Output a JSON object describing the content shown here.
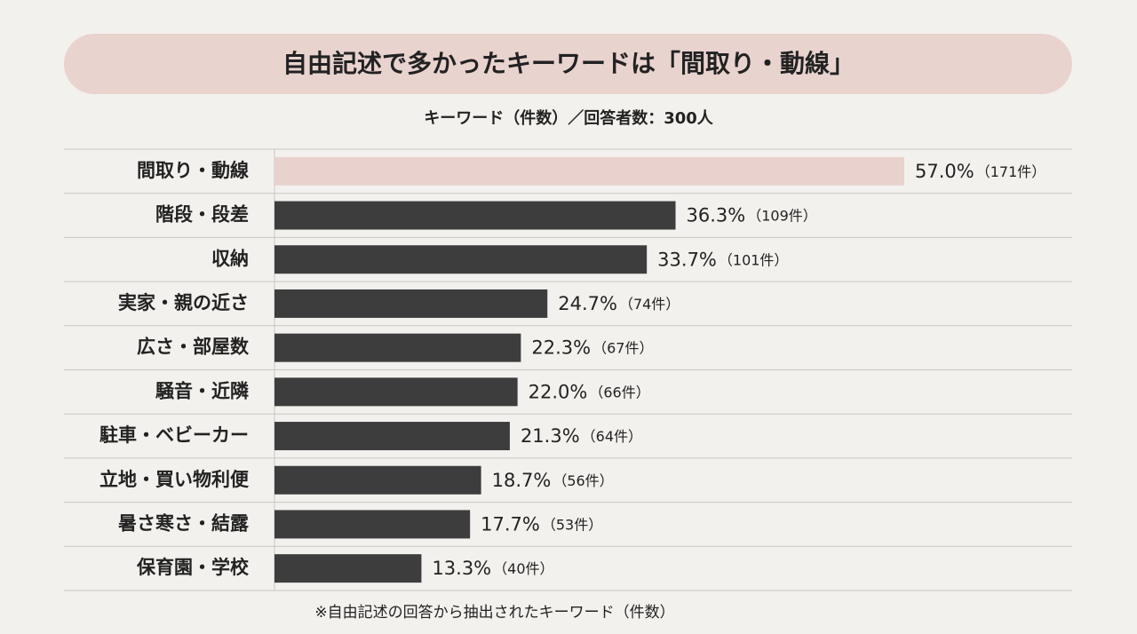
{
  "chart_data": {
    "type": "bar",
    "orientation": "horizontal",
    "title": "自由記述で多かったキーワードは「間取り・動線」",
    "subtitle": "キーワード（件数）／回答者数：300人",
    "categories": [
      "間取り・動線",
      "階段・段差",
      "収納",
      "実家・親の近さ",
      "広さ・部屋数",
      "騒音・近隣",
      "駐車・ベビーカー",
      "立地・買い物利便",
      "暑さ寒さ・結露",
      "保育園・学校"
    ],
    "values": [
      57,
      36.3,
      33.7,
      24.7,
      22.3,
      22,
      21.3,
      18.7,
      17.7,
      13.3
    ],
    "value_labels": [
      "57.0%",
      "36.3%",
      "33.7%",
      "24.7%",
      "22.3%",
      "22.0%",
      "21.3%",
      "18.7%",
      "17.7%",
      "13.3%"
    ],
    "count_labels": [
      "（171件）",
      "（109件）",
      "（101件）",
      "（74件）",
      "（67件）",
      "（66件）",
      "（64件）",
      "（56件）",
      "（53件）",
      "（40件）"
    ],
    "colors": [
      "#e9d1cd",
      "#3d3d3d",
      "#3d3d3d",
      "#3d3d3d",
      "#3d3d3d",
      "#3d3d3d",
      "#3d3d3d",
      "#3d3d3d",
      "#3d3d3d",
      "#3d3d3d"
    ],
    "footnote": "※自由記述の回答から抽出されたキーワード（件数）"
  }
}
